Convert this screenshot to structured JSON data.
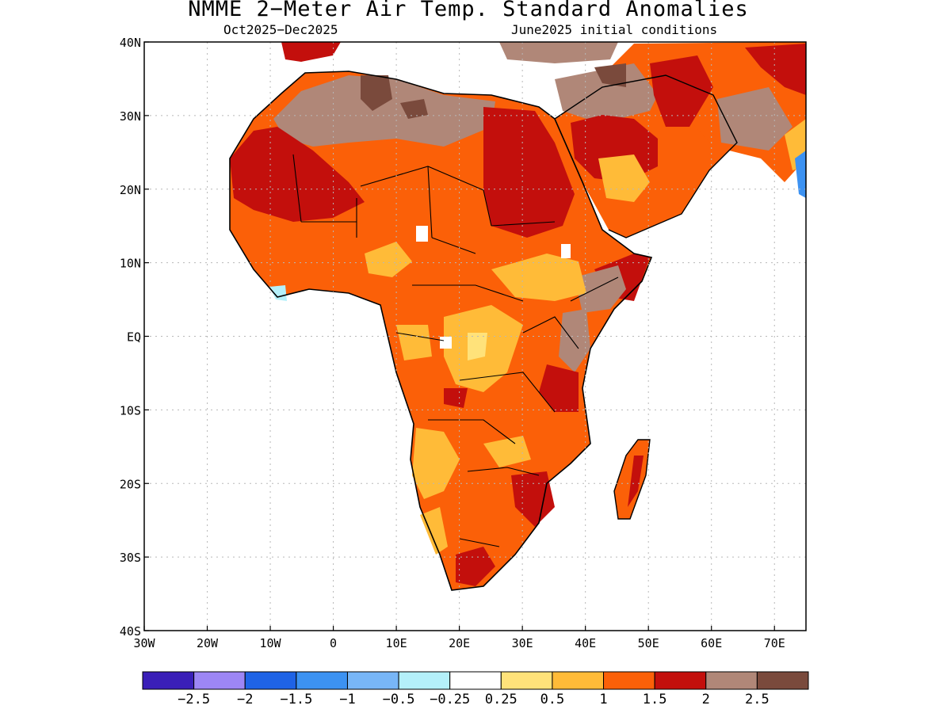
{
  "title": "NMME 2−Meter Air Temp. Standard Anomalies",
  "subtitle_left": "Oct2025−Dec2025",
  "subtitle_right": "June2025 initial conditions",
  "map": {
    "lon_range": [
      -30,
      75
    ],
    "lat_range": [
      -40,
      40
    ],
    "lon_ticks": [
      {
        "value": -30,
        "label": "30W"
      },
      {
        "value": -20,
        "label": "20W"
      },
      {
        "value": -10,
        "label": "10W"
      },
      {
        "value": 0,
        "label": "0"
      },
      {
        "value": 10,
        "label": "10E"
      },
      {
        "value": 20,
        "label": "20E"
      },
      {
        "value": 30,
        "label": "30E"
      },
      {
        "value": 40,
        "label": "40E"
      },
      {
        "value": 50,
        "label": "50E"
      },
      {
        "value": 60,
        "label": "60E"
      },
      {
        "value": 70,
        "label": "70E"
      }
    ],
    "lat_ticks": [
      {
        "value": 40,
        "label": "40N"
      },
      {
        "value": 30,
        "label": "30N"
      },
      {
        "value": 20,
        "label": "20N"
      },
      {
        "value": 10,
        "label": "10N"
      },
      {
        "value": 0,
        "label": "EQ"
      },
      {
        "value": -10,
        "label": "10S"
      },
      {
        "value": -20,
        "label": "20S"
      },
      {
        "value": -30,
        "label": "30S"
      },
      {
        "value": -40,
        "label": "40S"
      }
    ],
    "grid": true
  },
  "colorbar": {
    "colors": [
      "#3a1fb8",
      "#9d86f5",
      "#1f63e6",
      "#3c92f2",
      "#78b6f7",
      "#b4f0fa",
      "#ffffff",
      "#ffe27a",
      "#ffbb38",
      "#fb6008",
      "#c30f0c",
      "#b08778",
      "#7a4a3c"
    ],
    "labels": [
      "−2.5",
      "−2",
      "−1.5",
      "−1",
      "−0.5",
      "−0.25",
      "0.25",
      "0.5",
      "1",
      "1.5",
      "2",
      "2.5"
    ]
  }
}
